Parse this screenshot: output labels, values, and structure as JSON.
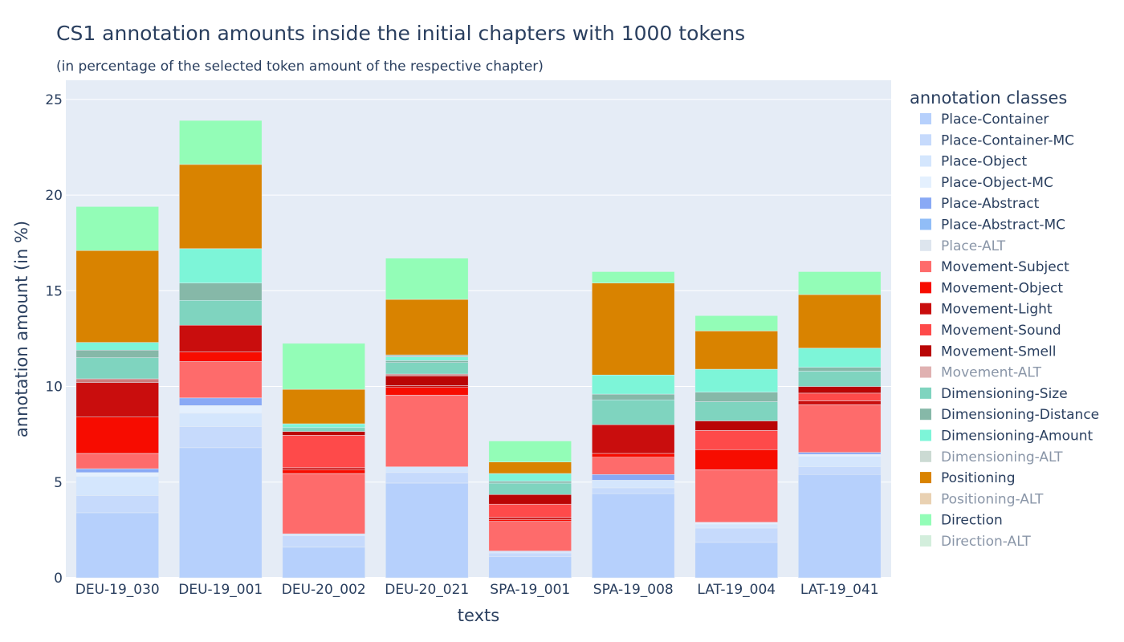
{
  "chart_data": {
    "type": "bar",
    "stacked": true,
    "title": "CS1 annotation amounts inside the initial chapters with 1000 tokens",
    "subtitle": "(in percentage of the selected token amount of the respective chapter)",
    "xlabel": "texts",
    "ylabel": "annotation amount (in %)",
    "ylim": [
      0,
      26
    ],
    "yticks": [
      0,
      5,
      10,
      15,
      20,
      25
    ],
    "grid": true,
    "legend_title": "annotation classes",
    "legend_position": "right",
    "categories": [
      "DEU-19_030",
      "DEU-19_001",
      "DEU-20_002",
      "DEU-20_021",
      "SPA-19_001",
      "SPA-19_008",
      "LAT-19_004",
      "LAT-19_041"
    ],
    "series": [
      {
        "name": "Place-Container",
        "color": "#b6d0fc",
        "values": [
          3.4,
          6.8,
          1.6,
          4.95,
          1.1,
          4.4,
          1.85,
          5.4
        ]
      },
      {
        "name": "Place-Container-MC",
        "color": "#c6dafc",
        "values": [
          0.9,
          1.1,
          0.6,
          0.55,
          0.2,
          0.3,
          0.75,
          0.4
        ]
      },
      {
        "name": "Place-Object",
        "color": "#d4e6fd",
        "values": [
          1.0,
          0.7,
          0.1,
          0.3,
          0.1,
          0.4,
          0.2,
          0.55
        ]
      },
      {
        "name": "Place-Object-MC",
        "color": "#e4f0fe",
        "values": [
          0.2,
          0.4,
          0.0,
          0.0,
          0.0,
          0.0,
          0.1,
          0.1
        ]
      },
      {
        "name": "Place-Abstract",
        "color": "#89a9f5",
        "values": [
          0.2,
          0.4,
          0.0,
          0.0,
          0.0,
          0.3,
          0.0,
          0.1
        ]
      },
      {
        "name": "Place-Abstract-MC",
        "color": "#91bdf7",
        "values": [
          0.0,
          0.0,
          0.0,
          0.0,
          0.0,
          0.0,
          0.0,
          0.0
        ]
      },
      {
        "name": "Place-ALT",
        "color": "#c6d3e3",
        "values": [
          0.0,
          0.0,
          0.0,
          0.0,
          0.0,
          0.0,
          0.0,
          0.0
        ]
      },
      {
        "name": "Movement-Subject",
        "color": "#fe6b6b",
        "values": [
          0.8,
          1.9,
          3.15,
          3.75,
          1.55,
          0.9,
          2.75,
          2.5
        ]
      },
      {
        "name": "Movement-Object",
        "color": "#f70c00",
        "values": [
          1.9,
          0.5,
          0.2,
          0.4,
          0.1,
          0.2,
          1.05,
          0.0
        ]
      },
      {
        "name": "Movement-Light",
        "color": "#c90d0d",
        "values": [
          1.8,
          1.4,
          0.1,
          0.1,
          0.1,
          1.5,
          0.0,
          0.2
        ]
      },
      {
        "name": "Movement-Sound",
        "color": "#fe4a4a",
        "values": [
          0.0,
          0.0,
          1.7,
          0.0,
          0.7,
          0.0,
          1.0,
          0.4
        ]
      },
      {
        "name": "Movement-Smell",
        "color": "#b90505",
        "values": [
          0.0,
          0.0,
          0.2,
          0.5,
          0.5,
          0.0,
          0.5,
          0.35
        ]
      },
      {
        "name": "Movement-ALT",
        "color": "#cc7d7d",
        "values": [
          0.2,
          0.0,
          0.0,
          0.1,
          0.0,
          0.0,
          0.0,
          0.0
        ]
      },
      {
        "name": "Dimensioning-Size",
        "color": "#7fd4bf",
        "values": [
          1.1,
          1.3,
          0.2,
          0.6,
          0.6,
          1.3,
          1.0,
          0.8
        ]
      },
      {
        "name": "Dimensioning-Distance",
        "color": "#86b8a8",
        "values": [
          0.4,
          0.9,
          0.0,
          0.1,
          0.1,
          0.3,
          0.5,
          0.2
        ]
      },
      {
        "name": "Dimensioning-Amount",
        "color": "#7df5d8",
        "values": [
          0.4,
          1.8,
          0.2,
          0.2,
          0.4,
          1.0,
          1.2,
          1.0
        ]
      },
      {
        "name": "Dimensioning-ALT",
        "color": "#a9c2b6",
        "values": [
          0.0,
          0.0,
          0.0,
          0.1,
          0.0,
          0.0,
          0.0,
          0.0
        ]
      },
      {
        "name": "Positioning",
        "color": "#d98300",
        "values": [
          4.8,
          4.4,
          1.8,
          2.9,
          0.6,
          4.8,
          2.0,
          2.8
        ]
      },
      {
        "name": "Positioning-ALT",
        "color": "#dbb37e",
        "values": [
          0.0,
          0.0,
          0.0,
          0.0,
          0.0,
          0.0,
          0.0,
          0.0
        ]
      },
      {
        "name": "Direction",
        "color": "#93fdb7",
        "values": [
          2.3,
          2.3,
          2.4,
          2.15,
          1.1,
          0.6,
          0.8,
          1.2
        ]
      },
      {
        "name": "Direction-ALT",
        "color": "#b5e3c5",
        "values": [
          0.0,
          0.0,
          0.0,
          0.0,
          0.0,
          0.0,
          0.0,
          0.0
        ]
      }
    ],
    "legend_dimmed": [
      "Place-ALT",
      "Movement-ALT",
      "Dimensioning-ALT",
      "Positioning-ALT",
      "Direction-ALT"
    ]
  }
}
